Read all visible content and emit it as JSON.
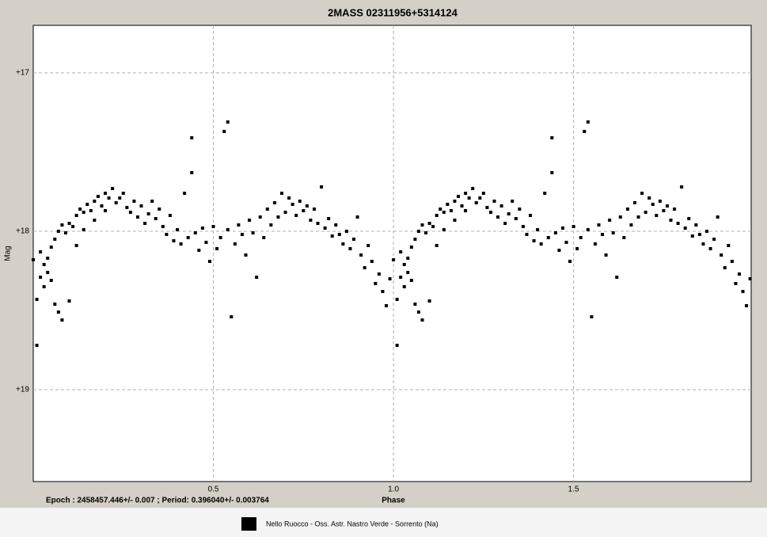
{
  "chart_data": {
    "type": "scatter",
    "title": "2MASS 02311956+5314124",
    "x_label": "Phase",
    "y_label": "Mag",
    "footer": "Epoch : 2458457.446+/- 0.007 ; Period: 0.396040+/- 0.003764",
    "xlim": [
      0,
      1.993
    ],
    "ylim": [
      16.7,
      19.58
    ],
    "y_inverted": true,
    "xticks": [
      0.5,
      {
        "value": 1.0,
        "label": "1.0"
      },
      1.5
    ],
    "yticks": [
      {
        "value": 17,
        "label": "+17"
      },
      {
        "value": 18,
        "label": "+18"
      },
      {
        "value": 19,
        "label": "+19"
      }
    ],
    "grid": true,
    "legend": "bottom",
    "series": [
      {
        "name": "Nello Ruocco - Oss. Astr. Nastro Verde - Sorrento (Na)",
        "color": "#000000",
        "x": [
          0.0,
          0.01,
          0.01,
          0.02,
          0.02,
          0.03,
          0.03,
          0.04,
          0.04,
          0.05,
          0.05,
          0.06,
          0.06,
          0.07,
          0.07,
          0.08,
          0.08,
          0.09,
          0.1,
          0.1,
          0.11,
          0.12,
          0.12,
          0.13,
          0.14,
          0.14,
          0.15,
          0.16,
          0.17,
          0.17,
          0.18,
          0.19,
          0.2,
          0.2,
          0.21,
          0.22,
          0.23,
          0.24,
          0.25,
          0.26,
          0.27,
          0.28,
          0.29,
          0.3,
          0.31,
          0.32,
          0.33,
          0.34,
          0.35,
          0.36,
          0.37,
          0.38,
          0.39,
          0.4,
          0.41,
          0.42,
          0.43,
          0.44,
          0.44,
          0.45,
          0.46,
          0.47,
          0.48,
          0.49,
          0.5,
          0.51,
          0.52,
          0.53,
          0.54,
          0.54,
          0.55,
          0.56,
          0.57,
          0.58,
          0.59,
          0.6,
          0.61,
          0.62,
          0.63,
          0.64,
          0.65,
          0.66,
          0.67,
          0.68,
          0.69,
          0.7,
          0.71,
          0.72,
          0.73,
          0.74,
          0.75,
          0.76,
          0.77,
          0.78,
          0.79,
          0.8,
          0.81,
          0.82,
          0.83,
          0.84,
          0.85,
          0.86,
          0.87,
          0.88,
          0.89,
          0.9,
          0.91,
          0.92,
          0.93,
          0.94,
          0.95,
          0.96,
          0.97,
          0.98,
          0.99,
          1.0,
          1.01,
          1.01,
          1.02,
          1.02,
          1.03,
          1.03,
          1.04,
          1.04,
          1.05,
          1.05,
          1.06,
          1.06,
          1.07,
          1.07,
          1.08,
          1.08,
          1.09,
          1.1,
          1.1,
          1.11,
          1.12,
          1.12,
          1.13,
          1.14,
          1.14,
          1.15,
          1.16,
          1.17,
          1.17,
          1.18,
          1.19,
          1.2,
          1.2,
          1.21,
          1.22,
          1.23,
          1.24,
          1.25,
          1.26,
          1.27,
          1.28,
          1.29,
          1.3,
          1.31,
          1.32,
          1.33,
          1.34,
          1.35,
          1.36,
          1.37,
          1.38,
          1.39,
          1.4,
          1.41,
          1.42,
          1.43,
          1.44,
          1.44,
          1.45,
          1.46,
          1.47,
          1.48,
          1.49,
          1.5,
          1.51,
          1.52,
          1.53,
          1.54,
          1.54,
          1.55,
          1.56,
          1.57,
          1.58,
          1.59,
          1.6,
          1.61,
          1.62,
          1.63,
          1.64,
          1.65,
          1.66,
          1.67,
          1.68,
          1.69,
          1.7,
          1.71,
          1.72,
          1.73,
          1.74,
          1.75,
          1.76,
          1.77,
          1.78,
          1.79,
          1.8,
          1.81,
          1.82,
          1.83,
          1.84,
          1.85,
          1.86,
          1.87,
          1.88,
          1.89,
          1.9,
          1.91,
          1.92,
          1.93,
          1.94,
          1.95,
          1.96,
          1.97,
          1.98,
          1.99
        ],
        "values": [
          18.18,
          18.43,
          18.72,
          18.13,
          18.29,
          18.21,
          18.35,
          18.17,
          18.26,
          18.1,
          18.31,
          18.05,
          18.46,
          18.0,
          18.51,
          17.96,
          18.56,
          18.01,
          17.95,
          18.44,
          17.97,
          17.9,
          18.09,
          17.86,
          17.88,
          17.99,
          17.83,
          17.87,
          17.81,
          17.93,
          17.78,
          17.84,
          17.76,
          17.87,
          17.79,
          17.73,
          17.82,
          17.79,
          17.76,
          17.85,
          17.88,
          17.81,
          17.91,
          17.84,
          17.95,
          17.89,
          17.81,
          17.92,
          17.86,
          17.97,
          18.02,
          17.9,
          18.06,
          17.99,
          18.08,
          17.76,
          18.04,
          17.41,
          17.63,
          18.01,
          18.12,
          17.98,
          18.07,
          18.19,
          17.97,
          18.11,
          18.04,
          17.37,
          17.31,
          17.99,
          18.54,
          18.08,
          17.96,
          18.02,
          18.15,
          17.93,
          18.01,
          18.29,
          17.91,
          18.04,
          17.86,
          17.96,
          17.82,
          17.91,
          17.76,
          17.88,
          17.79,
          17.83,
          17.9,
          17.81,
          17.87,
          17.84,
          17.93,
          17.86,
          17.95,
          17.72,
          17.98,
          17.92,
          18.03,
          17.96,
          18.02,
          18.08,
          18.0,
          18.11,
          18.05,
          17.91,
          18.15,
          18.23,
          18.09,
          18.19,
          18.33,
          18.27,
          18.38,
          18.47,
          18.3,
          18.18,
          18.43,
          18.72,
          18.13,
          18.29,
          18.21,
          18.35,
          18.17,
          18.26,
          18.1,
          18.31,
          18.05,
          18.46,
          18.0,
          18.51,
          17.96,
          18.56,
          18.01,
          17.95,
          18.44,
          17.97,
          17.9,
          18.09,
          17.86,
          17.88,
          17.99,
          17.83,
          17.87,
          17.81,
          17.93,
          17.78,
          17.84,
          17.76,
          17.87,
          17.79,
          17.73,
          17.82,
          17.79,
          17.76,
          17.85,
          17.88,
          17.81,
          17.91,
          17.84,
          17.95,
          17.89,
          17.81,
          17.92,
          17.86,
          17.97,
          18.02,
          17.9,
          18.06,
          17.99,
          18.08,
          17.76,
          18.04,
          17.41,
          17.63,
          18.01,
          18.12,
          17.98,
          18.07,
          18.19,
          17.97,
          18.11,
          18.04,
          17.37,
          17.31,
          17.99,
          18.54,
          18.08,
          17.96,
          18.02,
          18.15,
          17.93,
          18.01,
          18.29,
          17.91,
          18.04,
          17.86,
          17.96,
          17.82,
          17.91,
          17.76,
          17.88,
          17.79,
          17.83,
          17.9,
          17.81,
          17.87,
          17.84,
          17.93,
          17.86,
          17.95,
          17.72,
          17.98,
          17.92,
          18.03,
          17.96,
          18.02,
          18.08,
          18.0,
          18.11,
          18.05,
          17.91,
          18.15,
          18.23,
          18.09,
          18.19,
          18.33,
          18.27,
          18.38,
          18.47,
          18.3
        ]
      }
    ]
  }
}
